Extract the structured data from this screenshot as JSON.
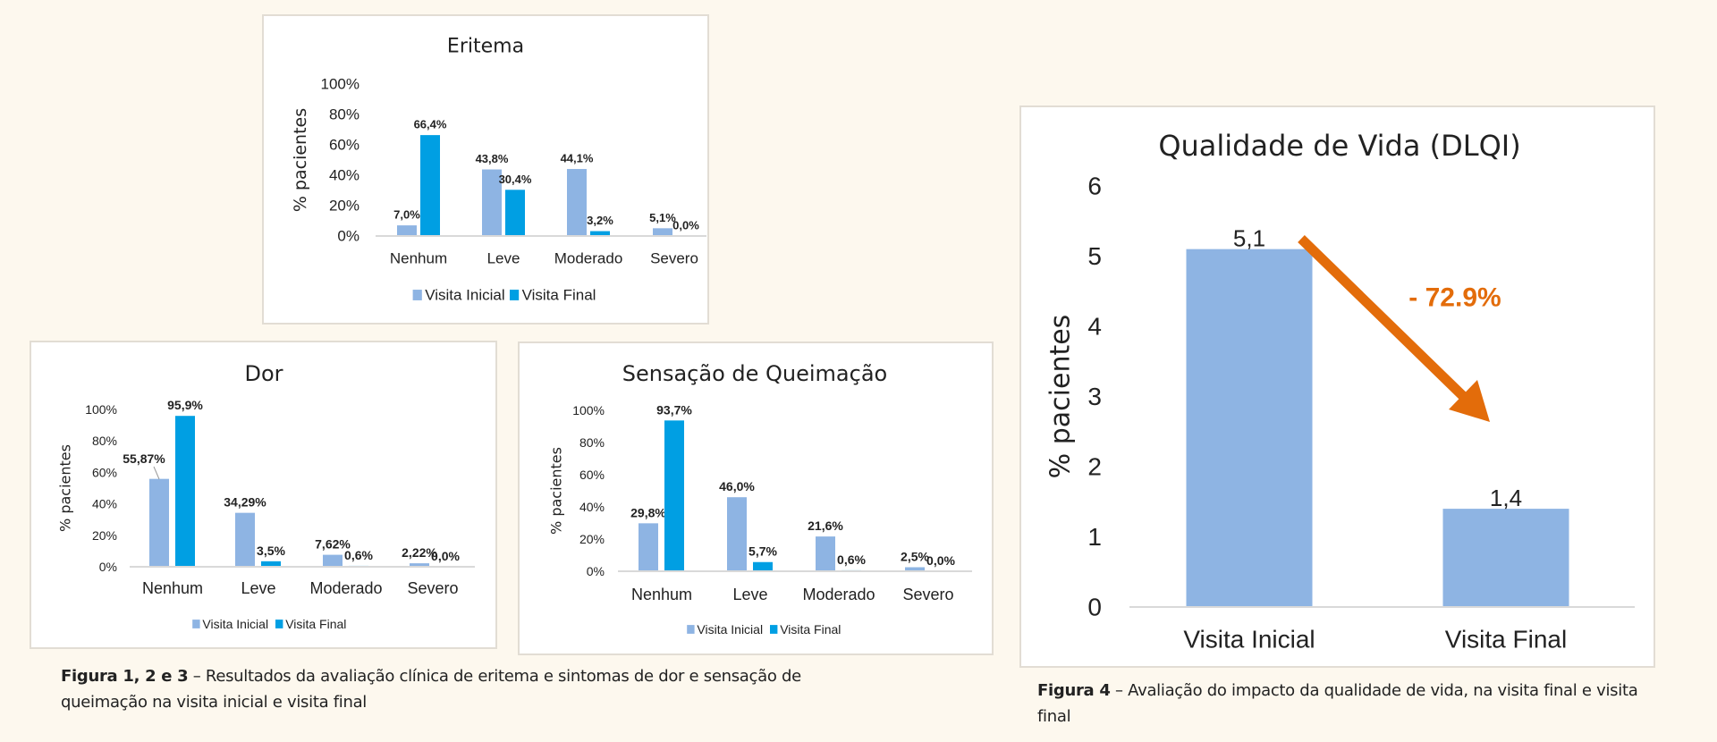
{
  "colors": {
    "visita_inicial": "#8eb4e3",
    "visita_final": "#009fe3",
    "arrow": "#e36c0a",
    "background": "#fdf8ee"
  },
  "chart_data": [
    {
      "type": "bar",
      "title": "Eritema",
      "ylabel": "% pacientes",
      "xlabel": "",
      "ylim": [
        0,
        100
      ],
      "y_ticks": [
        "0%",
        "20%",
        "40%",
        "60%",
        "80%",
        "100%"
      ],
      "categories": [
        "Nenhum",
        "Leve",
        "Moderado",
        "Severo"
      ],
      "legend_position": "bottom",
      "series": [
        {
          "name": "Visita Inicial",
          "values": [
            7.0,
            43.8,
            44.1,
            5.1
          ],
          "labels": [
            "7,0%",
            "43,8%",
            "44,1%",
            "5,1%"
          ]
        },
        {
          "name": "Visita Final",
          "values": [
            66.4,
            30.4,
            3.2,
            0.0
          ],
          "labels": [
            "66,4%",
            "30,4%",
            "3,2%",
            "0,0%"
          ]
        }
      ]
    },
    {
      "type": "bar",
      "title": "Dor",
      "ylabel": "% pacientes",
      "xlabel": "",
      "ylim": [
        0,
        100
      ],
      "y_ticks": [
        "0%",
        "20%",
        "40%",
        "60%",
        "80%",
        "100%"
      ],
      "categories": [
        "Nenhum",
        "Leve",
        "Moderado",
        "Severo"
      ],
      "legend_position": "bottom",
      "series": [
        {
          "name": "Visita Inicial",
          "values": [
            55.87,
            34.29,
            7.62,
            2.22
          ],
          "labels": [
            "55,87%",
            "34,29%",
            "7,62%",
            "2,22%"
          ]
        },
        {
          "name": "Visita Final",
          "values": [
            95.9,
            3.5,
            0.6,
            0.0
          ],
          "labels": [
            "95,9%",
            "3,5%",
            "0,6%",
            "0,0%"
          ]
        }
      ]
    },
    {
      "type": "bar",
      "title": "Sensação de Queimação",
      "ylabel": "% pacientes",
      "xlabel": "",
      "ylim": [
        0,
        100
      ],
      "y_ticks": [
        "0%",
        "20%",
        "40%",
        "60%",
        "80%",
        "100%"
      ],
      "categories": [
        "Nenhum",
        "Leve",
        "Moderado",
        "Severo"
      ],
      "legend_position": "bottom",
      "series": [
        {
          "name": "Visita Inicial",
          "values": [
            29.8,
            46.0,
            21.6,
            2.5
          ],
          "labels": [
            "29,8%",
            "46,0%",
            "21,6%",
            "2,5%"
          ]
        },
        {
          "name": "Visita Final",
          "values": [
            93.7,
            5.7,
            0.6,
            0.0
          ],
          "labels": [
            "93,7%",
            "5,7%",
            "0,6%",
            "0,0%"
          ]
        }
      ]
    },
    {
      "type": "bar",
      "title": "Qualidade de Vida (DLQI)",
      "ylabel": "% pacientes",
      "xlabel": "",
      "ylim": [
        0,
        6
      ],
      "y_ticks": [
        "0",
        "1",
        "2",
        "3",
        "4",
        "5",
        "6"
      ],
      "categories": [
        "Visita Inicial",
        "Visita Final"
      ],
      "legend_position": "none",
      "series": [
        {
          "name": "DLQI",
          "values": [
            5.1,
            1.4
          ],
          "labels": [
            "5,1",
            "1,4"
          ]
        }
      ],
      "annotation": "- 72.9%"
    }
  ],
  "captions": {
    "fig123_bold": "Figura 1, 2 e 3",
    "fig123_text": " – Resultados da avaliação clínica de eritema e sintomas de dor e sensação de queimação na visita inicial e visita final",
    "fig4_bold": "Figura 4",
    "fig4_text": " – Avaliação do impacto da qualidade de vida, na visita final e visita final"
  }
}
